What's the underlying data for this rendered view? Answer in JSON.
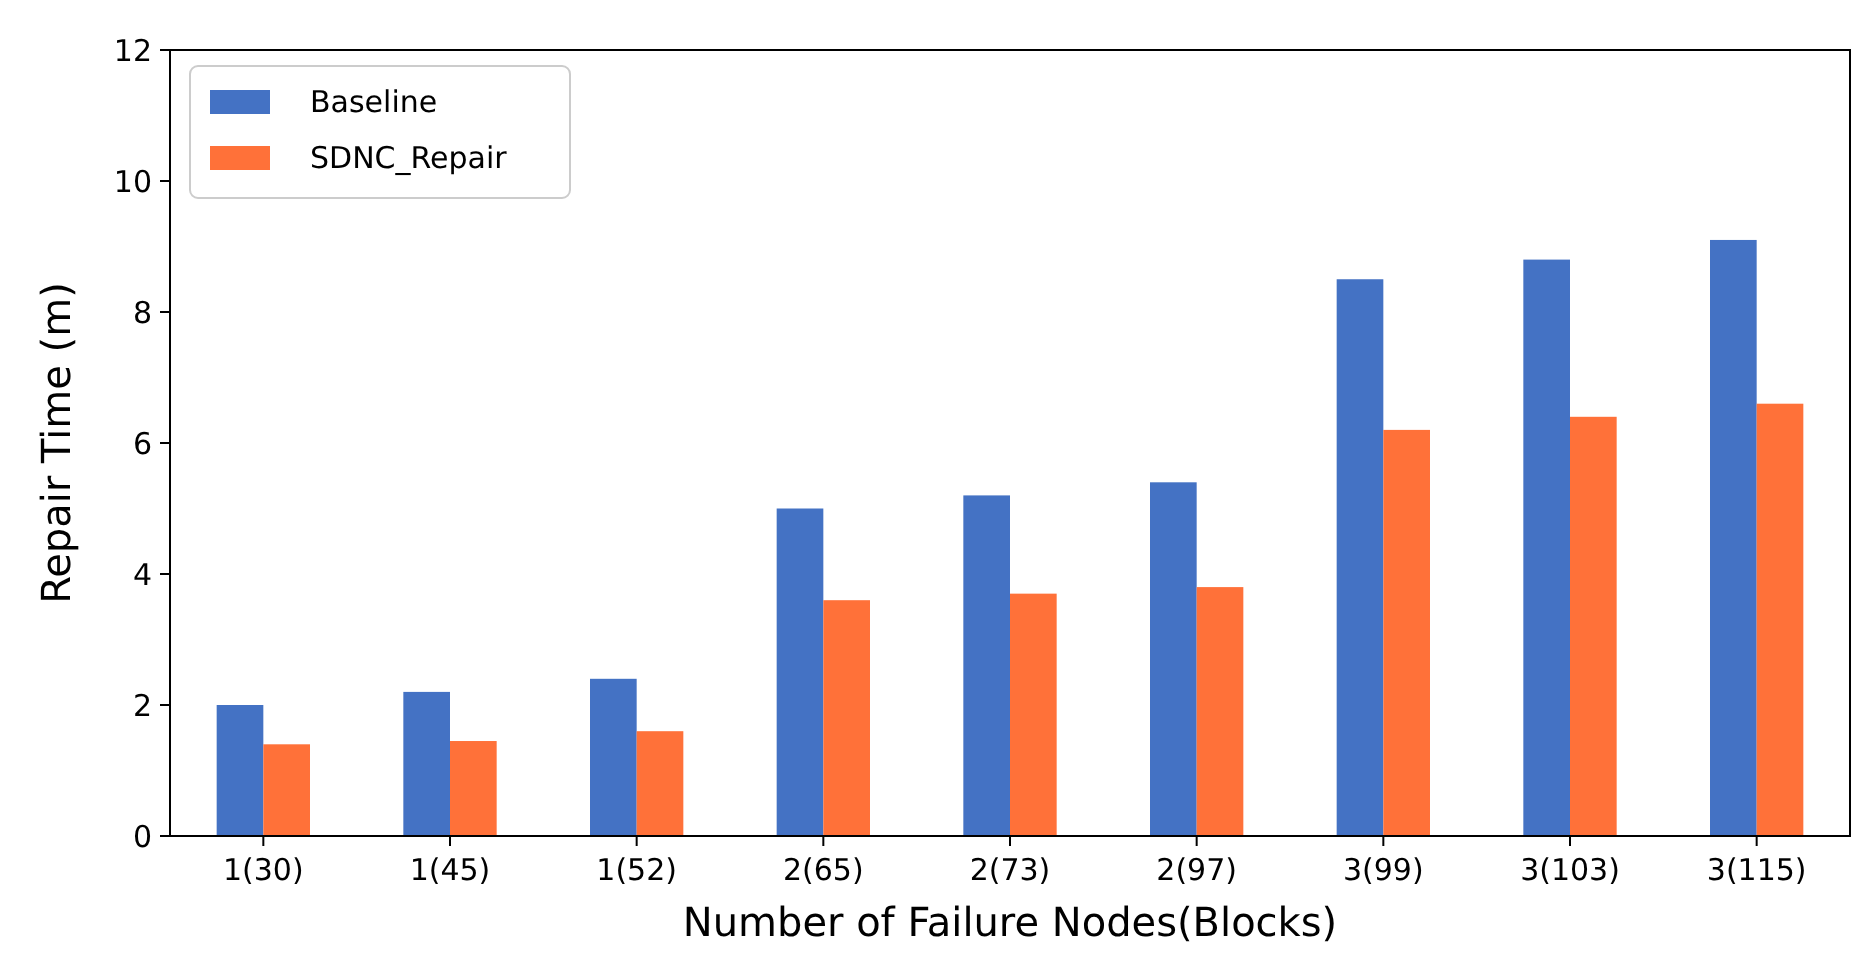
{
  "chart_data": {
    "type": "bar",
    "xlabel": "Number of Failure Nodes(Blocks)",
    "ylabel": "Repair Time (m)",
    "categories": [
      "1(30)",
      "1(45)",
      "1(52)",
      "2(65)",
      "2(73)",
      "2(97)",
      "3(99)",
      "3(103)",
      "3(115)"
    ],
    "series": [
      {
        "name": "Baseline",
        "color": "#4472c4",
        "values": [
          2.0,
          2.2,
          2.4,
          5.0,
          5.2,
          5.4,
          8.5,
          8.8,
          9.1
        ]
      },
      {
        "name": "SDNC_Repair",
        "color": "#ff7139",
        "values": [
          1.4,
          1.45,
          1.6,
          3.6,
          3.7,
          3.8,
          6.2,
          6.4,
          6.6
        ]
      }
    ],
    "ylim": [
      0,
      12
    ],
    "yticks": [
      0,
      2,
      4,
      6,
      8,
      10,
      12
    ],
    "grid": false,
    "legend": "top left"
  }
}
